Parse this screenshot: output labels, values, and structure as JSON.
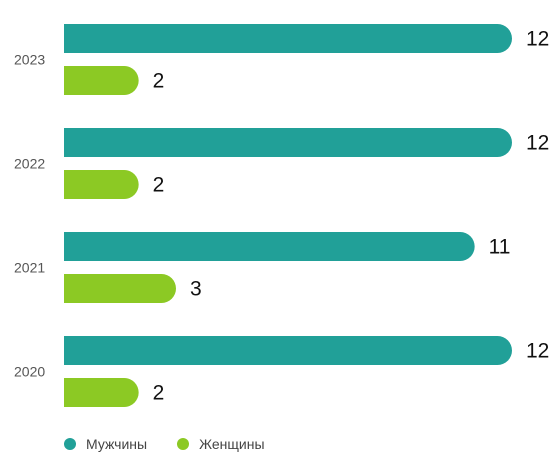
{
  "chart_data": {
    "type": "bar",
    "orientation": "horizontal",
    "categories": [
      "2023",
      "2022",
      "2021",
      "2020"
    ],
    "series": [
      {
        "name": "Мужчины",
        "values": [
          12,
          12,
          11,
          12
        ],
        "color": "#21a098"
      },
      {
        "name": "Женщины",
        "values": [
          2,
          2,
          3,
          2
        ],
        "color": "#8cc924"
      }
    ],
    "xlim": [
      0,
      12
    ],
    "grid": false,
    "legend_position": "bottom-left"
  },
  "legend": {
    "items": [
      {
        "label": "Мужчины",
        "color": "#21a098"
      },
      {
        "label": "Женщины",
        "color": "#8cc924"
      }
    ]
  }
}
